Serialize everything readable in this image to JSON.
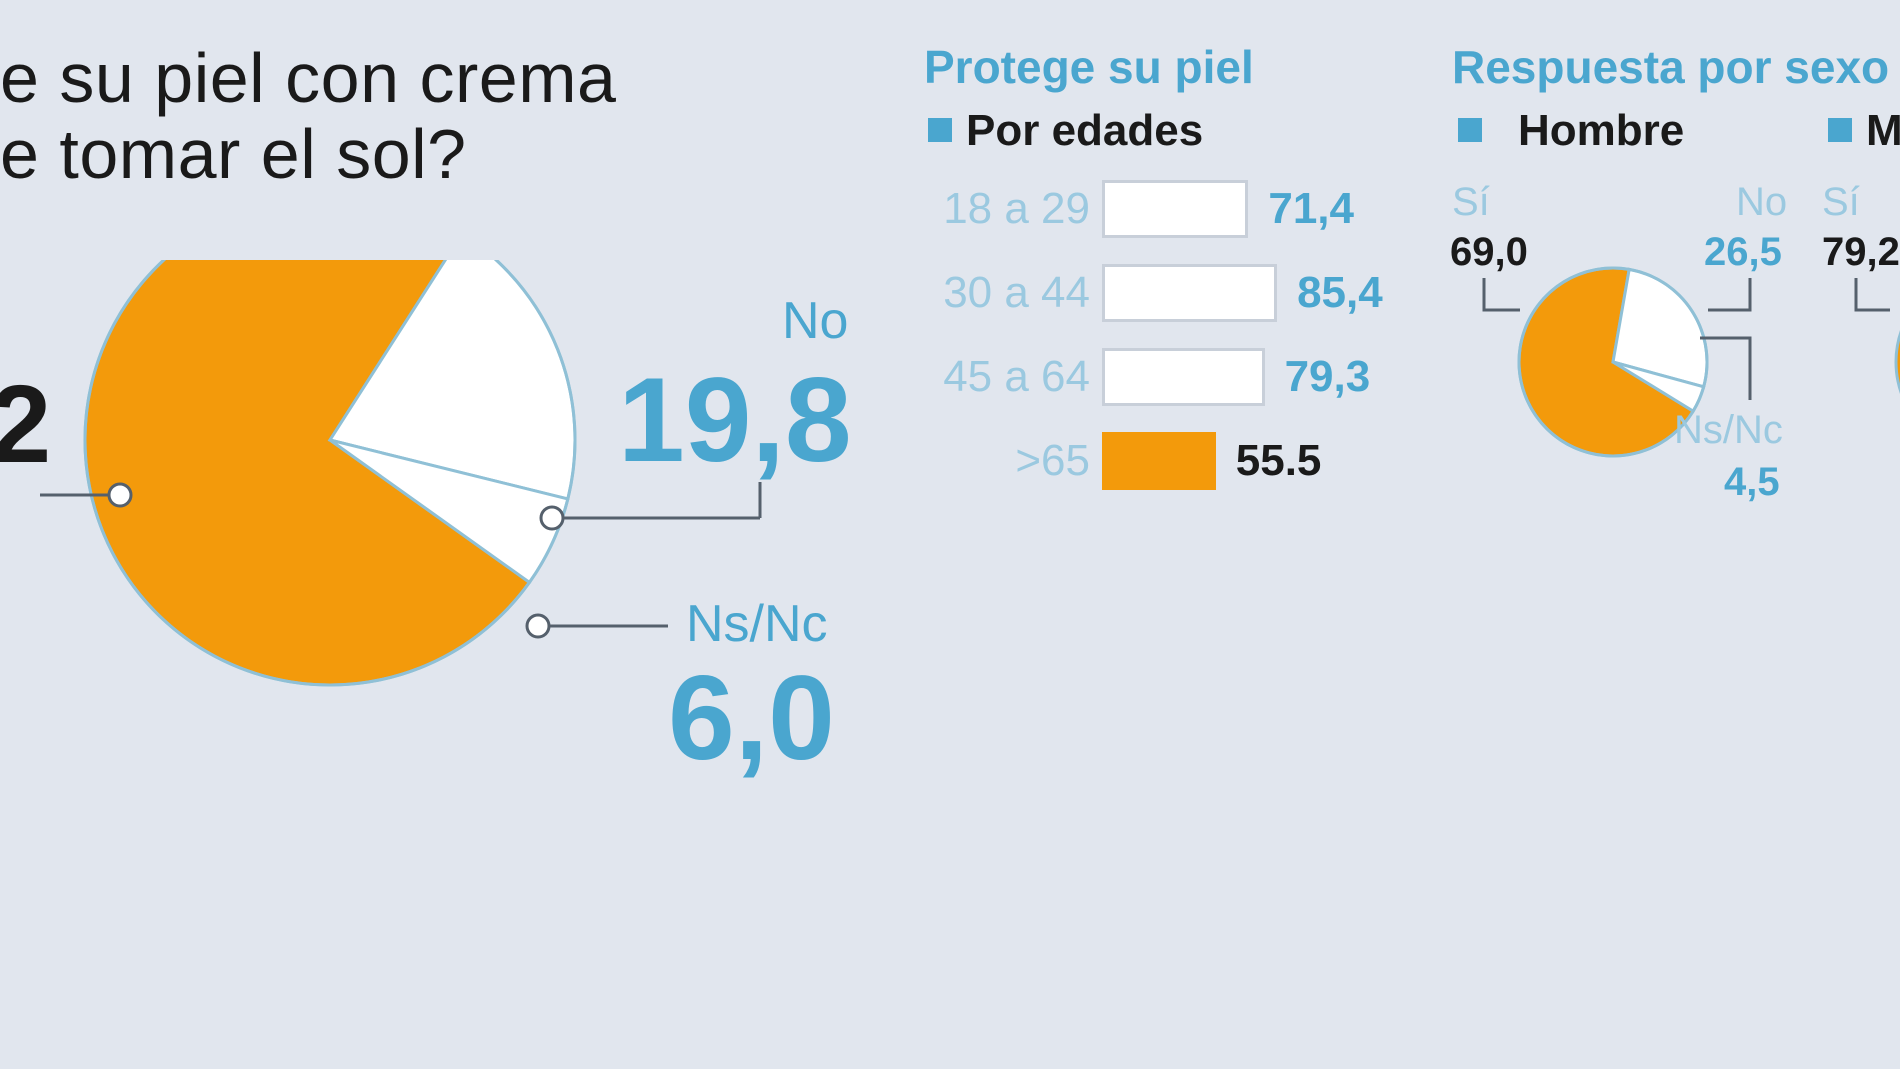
{
  "title": "e su piel con crema\ne tomar el sol?",
  "chart_data": [
    {
      "type": "pie",
      "slices": [
        {
          "label": "2",
          "value": 74.2,
          "color": "#f39a0b"
        },
        {
          "label": "No",
          "value": 19.8,
          "color": "#ffffff"
        },
        {
          "label": "Ns/Nc",
          "value": 6.0,
          "color": "#ffffff"
        }
      ],
      "labels": {
        "left_value": "2",
        "no_label": "No",
        "no_value": "19,8",
        "nsnc_label": "Ns/Nc",
        "nsnc_value": "6,0"
      }
    },
    {
      "type": "bar",
      "title": "Protege su piel",
      "legend": "Por edades",
      "categories": [
        "18 a 29",
        "30 a 44",
        "45 a 64",
        ">65"
      ],
      "values": [
        71.4,
        85.4,
        79.3,
        55.5
      ],
      "value_labels": [
        "71,4",
        "85,4",
        "79,3",
        "55.5"
      ],
      "highlight_index": 3
    },
    {
      "type": "pie",
      "title": "Respuesta por sexo",
      "legend": "Hombre",
      "slices": [
        {
          "label": "Sí",
          "value": 69.0,
          "color": "#f39a0b"
        },
        {
          "label": "No",
          "value": 26.5,
          "color": "#ffffff"
        },
        {
          "label": "Ns/Nc",
          "value": 4.5,
          "color": "#ffffff"
        }
      ],
      "value_labels": {
        "si": "69,0",
        "no": "26,5",
        "nsnc": "4,5"
      },
      "label_text": {
        "si": "Sí",
        "no": "No",
        "nsnc": "Ns/Nc"
      }
    },
    {
      "type": "pie",
      "legend": "M",
      "slices": [
        {
          "label": "Sí",
          "value": 79.2,
          "color": "#f39a0b"
        }
      ],
      "value_labels": {
        "si": "79,2"
      },
      "label_text": {
        "si": "Sí"
      }
    }
  ],
  "colors": {
    "accent": "#4aa6cf",
    "orange": "#f39a0b",
    "background": "#e1e6ee",
    "text": "#1a1a1a"
  }
}
